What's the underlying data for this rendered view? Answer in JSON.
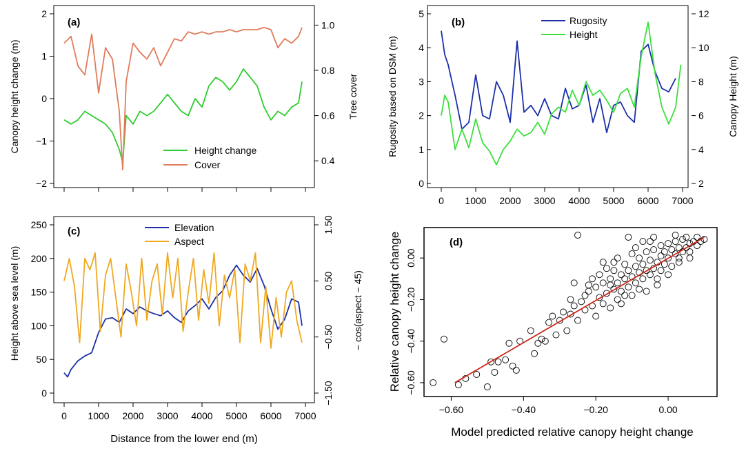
{
  "figure": {
    "xlabel_shared": "Distance from the lower end (m)"
  },
  "chart_data": [
    {
      "panel": "a",
      "type": "line",
      "panel_label": "(a)",
      "xlabel": "",
      "ylabel": "Canopy height change (m)",
      "ylabel_right": "Tree cover",
      "xlim": [
        0,
        7000
      ],
      "ylim": [
        -2,
        2
      ],
      "ylim_right": [
        0.3,
        1.05
      ],
      "yticks": [
        -2,
        -1,
        0,
        1,
        2
      ],
      "yticks_right": [
        0.4,
        0.6,
        0.8,
        1.0
      ],
      "ytick_labels_right": [
        "0.4",
        "0.6",
        "0.8",
        "1.0"
      ],
      "xticks": [
        0,
        1000,
        2000,
        3000,
        4000,
        5000,
        6000,
        7000
      ],
      "xtick_labels_shown": false,
      "legend_position": "bottom-center",
      "series": [
        {
          "name": "Height change",
          "color": "#2ecc2e",
          "axis": "left",
          "x": [
            0,
            200,
            400,
            600,
            800,
            1000,
            1200,
            1400,
            1600,
            1700,
            1800,
            2000,
            2200,
            2400,
            2600,
            2800,
            3000,
            3200,
            3400,
            3600,
            3800,
            4000,
            4200,
            4400,
            4600,
            4800,
            5000,
            5200,
            5400,
            5600,
            5800,
            6000,
            6200,
            6400,
            6600,
            6800,
            6900
          ],
          "values": [
            -0.5,
            -0.6,
            -0.5,
            -0.3,
            -0.4,
            -0.5,
            -0.6,
            -0.8,
            -1.2,
            -1.5,
            -0.4,
            -0.6,
            -0.3,
            -0.4,
            -0.3,
            -0.1,
            0.1,
            -0.1,
            -0.3,
            -0.4,
            0.0,
            -0.2,
            0.3,
            0.5,
            0.4,
            0.2,
            0.4,
            0.7,
            0.5,
            0.3,
            -0.2,
            -0.5,
            -0.3,
            -0.4,
            -0.2,
            -0.1,
            0.4
          ]
        },
        {
          "name": "Cover",
          "color": "#e07b5a",
          "axis": "right",
          "x": [
            0,
            200,
            400,
            600,
            800,
            1000,
            1200,
            1400,
            1600,
            1700,
            1800,
            2000,
            2200,
            2400,
            2600,
            2800,
            3000,
            3200,
            3400,
            3600,
            3800,
            4000,
            4200,
            4400,
            4600,
            4800,
            5000,
            5200,
            5400,
            5600,
            5800,
            6000,
            6200,
            6400,
            6600,
            6800,
            6900
          ],
          "values": [
            0.92,
            0.95,
            0.82,
            0.78,
            0.96,
            0.7,
            0.9,
            0.85,
            0.62,
            0.36,
            0.75,
            0.92,
            0.88,
            0.85,
            0.9,
            0.82,
            0.88,
            0.94,
            0.93,
            0.97,
            0.96,
            0.97,
            0.96,
            0.97,
            0.97,
            0.98,
            0.97,
            0.98,
            0.98,
            0.98,
            0.99,
            0.98,
            0.9,
            0.94,
            0.92,
            0.95,
            0.99
          ]
        }
      ]
    },
    {
      "panel": "b",
      "type": "line",
      "panel_label": "(b)",
      "xlabel": "",
      "ylabel": "Rugosity based on DSM (m)",
      "ylabel_right": "Canopy Height (m)",
      "xlim": [
        0,
        7000
      ],
      "ylim": [
        0,
        5
      ],
      "ylim_right": [
        2,
        12
      ],
      "yticks": [
        0,
        1,
        2,
        3,
        4,
        5
      ],
      "yticks_right": [
        2,
        4,
        6,
        8,
        10,
        12
      ],
      "xticks": [
        0,
        1000,
        2000,
        3000,
        4000,
        5000,
        6000,
        7000
      ],
      "xtick_labels_shown": true,
      "legend_position": "top-center",
      "series": [
        {
          "name": "Rugosity",
          "color": "#1a2fa8",
          "axis": "left",
          "x": [
            0,
            100,
            200,
            400,
            600,
            800,
            1000,
            1200,
            1400,
            1600,
            1800,
            2000,
            2200,
            2400,
            2600,
            2800,
            3000,
            3200,
            3400,
            3600,
            3800,
            4000,
            4200,
            4400,
            4600,
            4800,
            5000,
            5200,
            5400,
            5600,
            5800,
            6000,
            6200,
            6400,
            6600,
            6800
          ],
          "values": [
            4.5,
            3.8,
            3.5,
            2.6,
            1.6,
            1.8,
            3.2,
            2.0,
            1.9,
            3.0,
            2.6,
            1.8,
            4.2,
            2.1,
            2.3,
            2.0,
            2.5,
            2.0,
            1.9,
            2.8,
            2.2,
            2.3,
            2.9,
            1.8,
            2.5,
            1.5,
            2.3,
            2.4,
            2.0,
            1.8,
            3.9,
            4.1,
            3.3,
            2.8,
            2.7,
            3.1
          ]
        },
        {
          "name": "Height",
          "color": "#3be03b",
          "axis": "right",
          "x": [
            0,
            100,
            200,
            400,
            600,
            800,
            1000,
            1200,
            1400,
            1600,
            1800,
            2000,
            2200,
            2400,
            2600,
            2800,
            3000,
            3200,
            3400,
            3600,
            3800,
            4000,
            4200,
            4400,
            4600,
            4800,
            5000,
            5200,
            5400,
            5600,
            5800,
            6000,
            6200,
            6400,
            6600,
            6800,
            6950
          ],
          "values": [
            6.0,
            7.2,
            6.8,
            4.0,
            5.2,
            4.1,
            5.8,
            4.4,
            3.9,
            3.1,
            4.0,
            4.5,
            5.2,
            4.8,
            5.0,
            5.6,
            4.9,
            6.1,
            6.5,
            6.2,
            7.5,
            6.6,
            8.0,
            7.2,
            7.5,
            6.9,
            6.2,
            7.3,
            7.6,
            6.5,
            9.5,
            11.5,
            8.5,
            6.5,
            5.5,
            6.5,
            9.0
          ]
        }
      ]
    },
    {
      "panel": "c",
      "type": "line",
      "panel_label": "(c)",
      "xlabel": "Distance from the lower end (m)",
      "ylabel": "Height above sea level (m)",
      "ylabel_right": "− cos(aspect − 45)",
      "xlim": [
        0,
        7000
      ],
      "ylim": [
        0,
        250
      ],
      "ylim_right": [
        -1.5,
        1.5
      ],
      "yticks": [
        0,
        50,
        100,
        150,
        200,
        250
      ],
      "yticks_right": [
        -1.5,
        -0.5,
        0.5,
        1.5
      ],
      "ytick_labels_right": [
        "−1.50",
        "−0.50",
        "0.50",
        "1.50"
      ],
      "xticks": [
        0,
        1000,
        2000,
        3000,
        4000,
        5000,
        6000,
        7000
      ],
      "xtick_labels_shown": true,
      "legend_position": "top-center",
      "series": [
        {
          "name": "Elevation",
          "color": "#1a2fa8",
          "axis": "left",
          "x": [
            0,
            100,
            200,
            400,
            600,
            800,
            1000,
            1200,
            1400,
            1600,
            1800,
            2000,
            2200,
            2400,
            2600,
            2800,
            3000,
            3200,
            3400,
            3600,
            3800,
            4000,
            4200,
            4400,
            4600,
            4800,
            5000,
            5200,
            5400,
            5600,
            5800,
            6000,
            6200,
            6400,
            6600,
            6800,
            6900
          ],
          "values": [
            30,
            24,
            35,
            48,
            55,
            60,
            90,
            110,
            112,
            105,
            125,
            118,
            128,
            122,
            118,
            115,
            122,
            112,
            105,
            122,
            130,
            140,
            125,
            142,
            152,
            175,
            190,
            175,
            165,
            185,
            160,
            125,
            95,
            110,
            140,
            135,
            100
          ]
        },
        {
          "name": "Aspect",
          "color": "#f0a820",
          "axis": "right",
          "x": [
            0,
            150,
            300,
            450,
            600,
            750,
            900,
            1050,
            1200,
            1350,
            1500,
            1650,
            1800,
            1950,
            2100,
            2250,
            2400,
            2550,
            2700,
            2850,
            3000,
            3150,
            3300,
            3450,
            3600,
            3750,
            3900,
            4050,
            4200,
            4350,
            4500,
            4650,
            4800,
            4950,
            5100,
            5250,
            5400,
            5550,
            5700,
            5850,
            6000,
            6150,
            6300,
            6450,
            6600,
            6750,
            6900
          ],
          "values": [
            0.5,
            0.9,
            0.4,
            -0.6,
            0.9,
            0.7,
            1.0,
            -0.4,
            0.6,
            0.9,
            0.2,
            -0.5,
            0.8,
            0.3,
            -0.3,
            0.9,
            -0.2,
            0.5,
            0.8,
            -0.1,
            1.0,
            0.2,
            0.9,
            -0.4,
            0.3,
            0.9,
            -0.2,
            0.7,
            0.1,
            1.0,
            -0.3,
            0.6,
            0.2,
            0.7,
            -0.6,
            0.8,
            0.5,
            1.0,
            -0.6,
            0.4,
            -0.7,
            0.2,
            -0.5,
            0.3,
            0.5,
            -0.2,
            -0.6
          ]
        }
      ]
    },
    {
      "panel": "d",
      "type": "scatter",
      "panel_label": "(d)",
      "xlabel": "Model predicted relative canopy height change",
      "ylabel": "Relative canopy height change",
      "xlim": [
        -0.66,
        0.12
      ],
      "ylim": [
        -0.64,
        0.12
      ],
      "xticks": [
        -0.6,
        -0.4,
        -0.2,
        0.0
      ],
      "xtick_labels": [
        "−0.60",
        "−0.40",
        "−0.20",
        "0.00"
      ],
      "yticks": [
        -0.6,
        -0.4,
        -0.2,
        0.0
      ],
      "ytick_labels": [
        "−0.60",
        "−0.40",
        "−0.20",
        "0.00"
      ],
      "fit_line": {
        "color": "#cc2a1e",
        "x": [
          -0.59,
          0.1
        ],
        "y": [
          -0.6,
          0.1
        ]
      },
      "marker": "open-circle",
      "points": [
        [
          -0.65,
          -0.6
        ],
        [
          -0.62,
          -0.39
        ],
        [
          -0.58,
          -0.61
        ],
        [
          -0.56,
          -0.58
        ],
        [
          -0.53,
          -0.56
        ],
        [
          -0.5,
          -0.62
        ],
        [
          -0.49,
          -0.5
        ],
        [
          -0.48,
          -0.55
        ],
        [
          -0.47,
          -0.5
        ],
        [
          -0.45,
          -0.49
        ],
        [
          -0.44,
          -0.41
        ],
        [
          -0.43,
          -0.52
        ],
        [
          -0.42,
          -0.54
        ],
        [
          -0.41,
          -0.4
        ],
        [
          -0.38,
          -0.35
        ],
        [
          -0.37,
          -0.46
        ],
        [
          -0.36,
          -0.41
        ],
        [
          -0.35,
          -0.39
        ],
        [
          -0.34,
          -0.4
        ],
        [
          -0.33,
          -0.31
        ],
        [
          -0.32,
          -0.28
        ],
        [
          -0.31,
          -0.37
        ],
        [
          -0.3,
          -0.3
        ],
        [
          -0.29,
          -0.26
        ],
        [
          -0.28,
          -0.35
        ],
        [
          -0.27,
          -0.27
        ],
        [
          -0.26,
          -0.23
        ],
        [
          -0.25,
          0.11
        ],
        [
          -0.25,
          -0.3
        ],
        [
          -0.24,
          -0.21
        ],
        [
          -0.23,
          -0.25
        ],
        [
          -0.22,
          -0.16
        ],
        [
          -0.21,
          -0.23
        ],
        [
          -0.2,
          -0.14
        ],
        [
          -0.2,
          -0.28
        ],
        [
          -0.19,
          -0.19
        ],
        [
          -0.18,
          -0.12
        ],
        [
          -0.18,
          -0.22
        ],
        [
          -0.17,
          -0.17
        ],
        [
          -0.16,
          -0.1
        ],
        [
          -0.16,
          -0.24
        ],
        [
          -0.15,
          -0.15
        ],
        [
          -0.15,
          -0.06
        ],
        [
          -0.14,
          -0.12
        ],
        [
          -0.14,
          -0.2
        ],
        [
          -0.13,
          -0.08
        ],
        [
          -0.13,
          -0.16
        ],
        [
          -0.12,
          -0.1
        ],
        [
          -0.12,
          -0.03
        ],
        [
          -0.11,
          -0.14
        ],
        [
          -0.11,
          -0.06
        ],
        [
          -0.1,
          -0.09
        ],
        [
          -0.1,
          -0.18
        ],
        [
          -0.09,
          -0.04
        ],
        [
          -0.09,
          -0.12
        ],
        [
          -0.08,
          -0.07
        ],
        [
          -0.08,
          0.0
        ],
        [
          -0.07,
          -0.1
        ],
        [
          -0.07,
          -0.03
        ],
        [
          -0.06,
          -0.06
        ],
        [
          -0.06,
          0.03
        ],
        [
          -0.05,
          -0.08
        ],
        [
          -0.05,
          -0.01
        ],
        [
          -0.04,
          -0.05
        ],
        [
          -0.04,
          0.04
        ],
        [
          -0.03,
          -0.02
        ],
        [
          -0.03,
          -0.1
        ],
        [
          -0.02,
          0.01
        ],
        [
          -0.02,
          0.06
        ],
        [
          -0.01,
          -0.03
        ],
        [
          -0.01,
          0.03
        ],
        [
          0.0,
          0.0
        ],
        [
          0.0,
          0.07
        ],
        [
          0.01,
          -0.04
        ],
        [
          0.01,
          0.04
        ],
        [
          0.02,
          0.02
        ],
        [
          0.02,
          0.08
        ],
        [
          0.03,
          0.0
        ],
        [
          0.03,
          0.05
        ],
        [
          0.04,
          0.03
        ],
        [
          0.04,
          0.09
        ],
        [
          0.05,
          0.05
        ],
        [
          0.05,
          0.1
        ],
        [
          0.06,
          0.07
        ],
        [
          0.06,
          0.03
        ],
        [
          0.07,
          0.08
        ],
        [
          0.08,
          0.06
        ],
        [
          0.08,
          0.1
        ],
        [
          0.09,
          0.08
        ],
        [
          0.1,
          0.09
        ],
        [
          -0.12,
          -0.18
        ],
        [
          -0.06,
          -0.16
        ],
        [
          -0.03,
          -0.13
        ],
        [
          0.0,
          -0.08
        ],
        [
          -0.17,
          -0.05
        ],
        [
          -0.21,
          -0.1
        ],
        [
          -0.09,
          0.05
        ],
        [
          -0.14,
          0.0
        ],
        [
          -0.05,
          0.08
        ],
        [
          -0.19,
          -0.08
        ],
        [
          -0.23,
          -0.18
        ],
        [
          -0.27,
          -0.2
        ],
        [
          -0.1,
          0.02
        ],
        [
          -0.08,
          -0.15
        ],
        [
          -0.02,
          -0.06
        ],
        [
          0.03,
          -0.02
        ],
        [
          0.06,
          0.0
        ],
        [
          -0.15,
          -0.02
        ],
        [
          -0.26,
          -0.12
        ],
        [
          -0.11,
          0.1
        ],
        [
          -0.04,
          0.1
        ],
        [
          0.02,
          0.11
        ],
        [
          -0.07,
          0.08
        ],
        [
          -0.13,
          -0.22
        ],
        [
          -0.16,
          -0.13
        ],
        [
          -0.22,
          -0.13
        ],
        [
          -0.18,
          -0.02
        ]
      ]
    }
  ]
}
